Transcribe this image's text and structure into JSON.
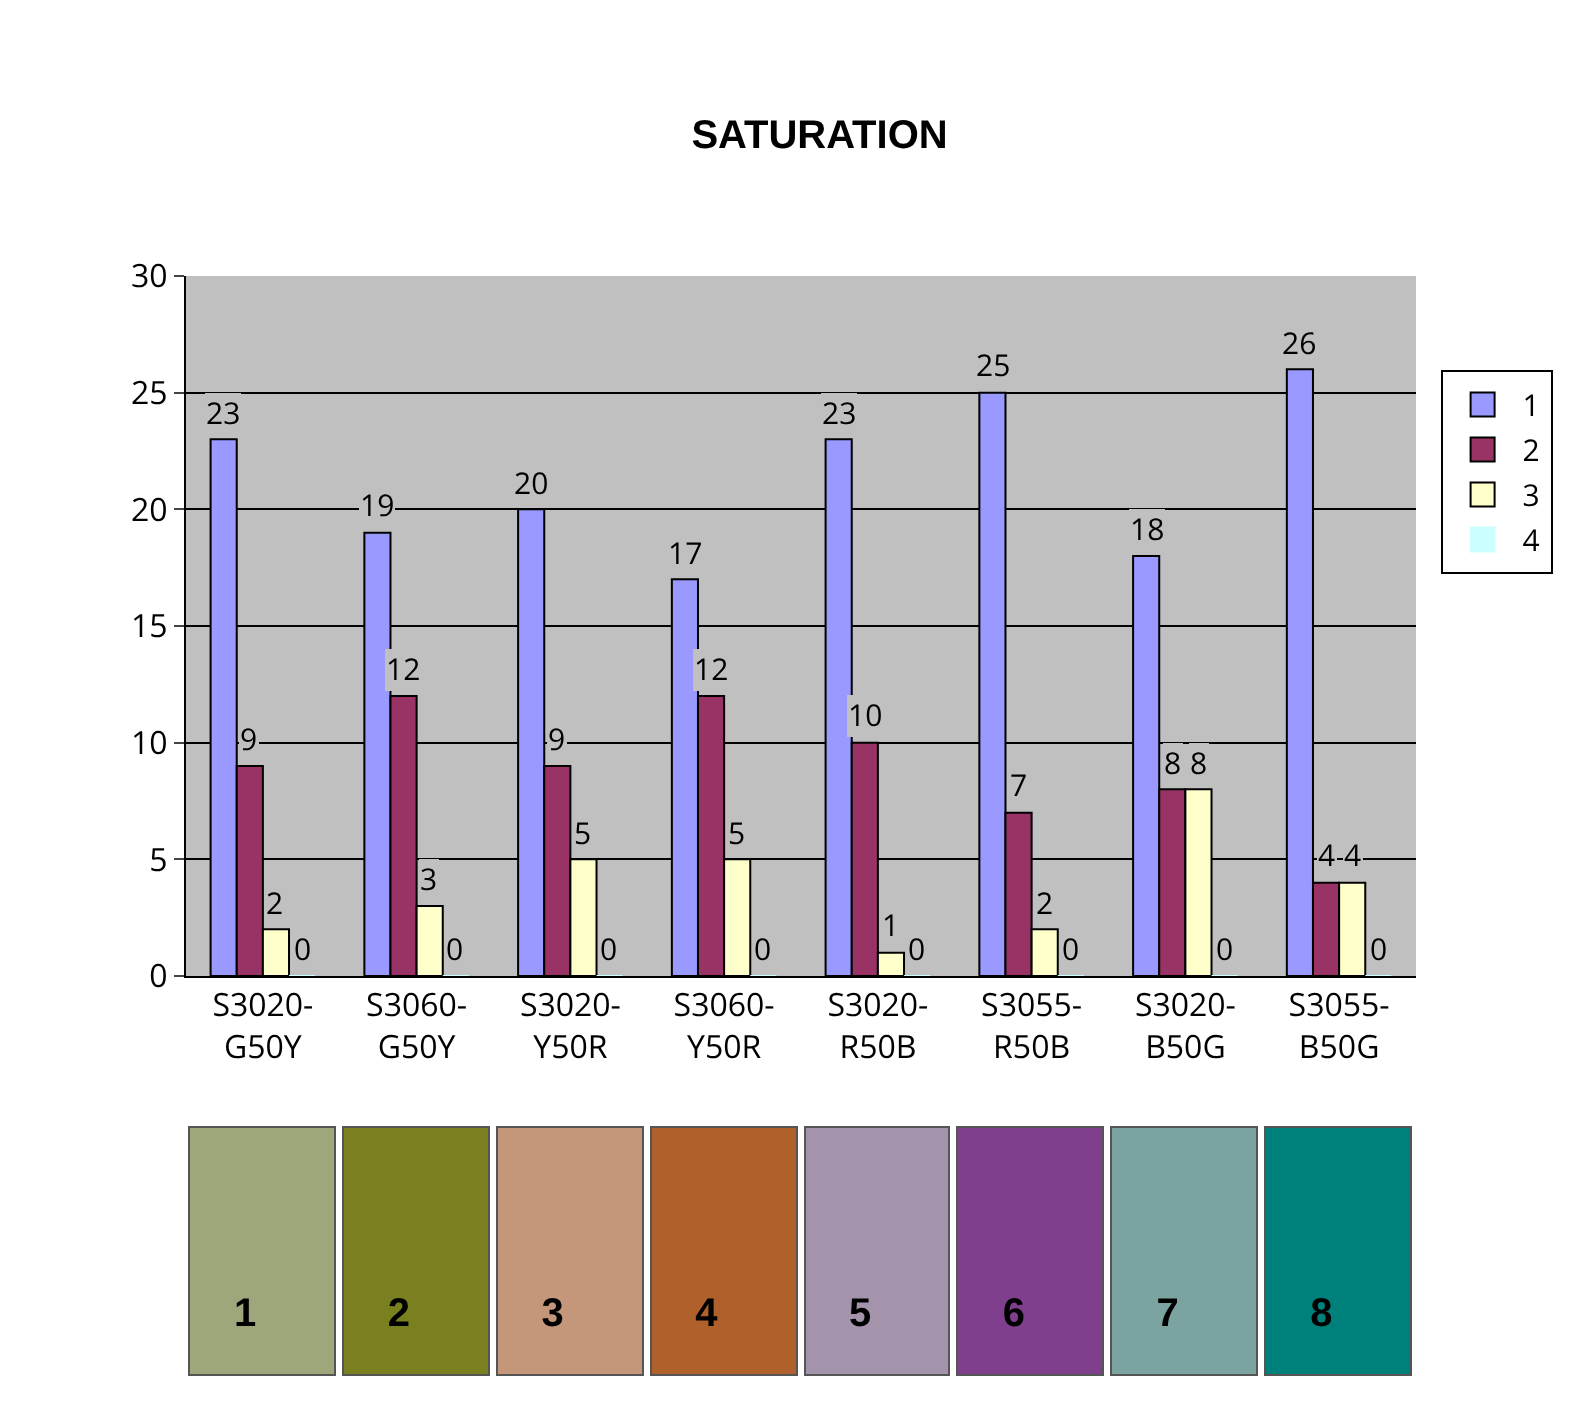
{
  "chart_data": {
    "type": "bar",
    "title": "SATURATION",
    "categories": [
      "S3020-G50Y",
      "S3060-G50Y",
      "S3020-Y50R",
      "S3060-Y50R",
      "S3020-R50B",
      "S3055-R50B",
      "S3020-B50G",
      "S3055-B50G"
    ],
    "series": [
      {
        "name": "1",
        "color": "#9999ff",
        "values": [
          23,
          19,
          20,
          17,
          23,
          25,
          18,
          26
        ]
      },
      {
        "name": "2",
        "color": "#993366",
        "values": [
          9,
          12,
          9,
          12,
          10,
          7,
          8,
          4
        ]
      },
      {
        "name": "3",
        "color": "#ffffcc",
        "values": [
          2,
          3,
          5,
          5,
          1,
          2,
          8,
          4
        ]
      },
      {
        "name": "4",
        "color": "#ccffff",
        "values": [
          0,
          0,
          0,
          0,
          0,
          0,
          0,
          0
        ]
      }
    ],
    "ylim": [
      0,
      30
    ],
    "yticks": [
      0,
      5,
      10,
      15,
      20,
      25,
      30
    ],
    "grid": "y",
    "legend": "right",
    "data_labels": true,
    "annotations": [
      "1",
      "2",
      "3",
      "4",
      "5",
      "6",
      "7",
      "8"
    ]
  }
}
